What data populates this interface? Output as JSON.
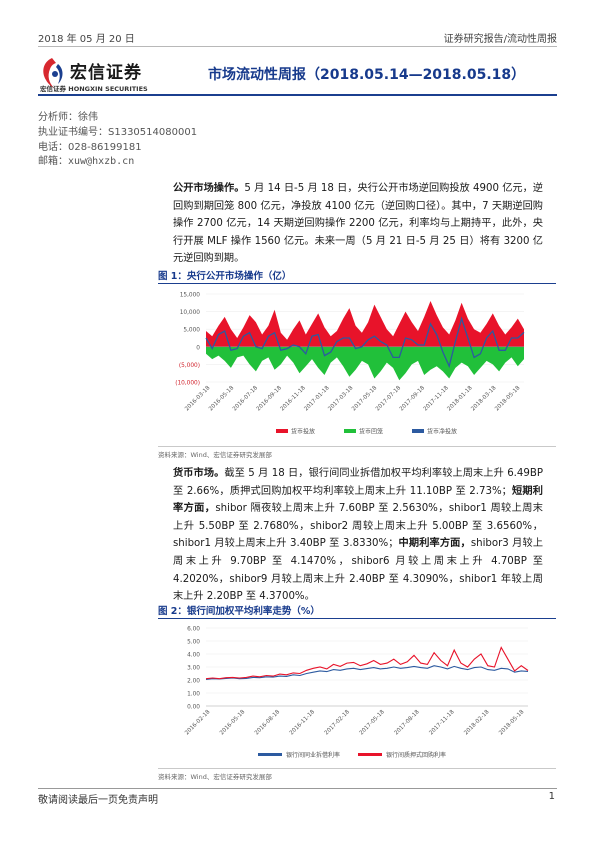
{
  "header": {
    "date": "2018 年 05 月 20 日",
    "category": "证券研究报告/流动性周报"
  },
  "brand": {
    "name_cn": "宏信证券",
    "name_en_small": "宏信证券",
    "name_en": "HONGXIN SECURITIES",
    "color": "#d7282f"
  },
  "report_title": "市场流动性周报（2018.05.14—2018.05.18）",
  "author": {
    "analyst": "分析师：徐伟",
    "license": "执业证书编号：S1330514080001",
    "phone": "电话：028-86199181",
    "email": "邮箱：xuw@hxzb.cn"
  },
  "para1": {
    "lead": "公开市场操作。",
    "text": "5 月 14 日-5 月 18 日，央行公开市场逆回购投放 4900 亿元，逆回购到期回笼 800 亿元，净投放 4100 亿元（逆回购口径）。其中，7 天期逆回购操作 2700 亿元，14 天期逆回购操作 2200 亿元，利率均与上期持平，此外，央行开展 MLF 操作 1560 亿元。未来一周（5 月 21 日-5 月 25 日）将有 3200 亿元逆回购到期。"
  },
  "fig1": {
    "title": "图 1：央行公开市场操作（亿）",
    "source": "资料来源：Wind、宏信证券研究发展部"
  },
  "para2": {
    "lead": "货币市场。",
    "text1": "截至 5 月 18 日，银行间同业拆借加权平均利率较上周末上升 6.49BP 至 2.66%，质押式回购加权平均利率较上周末上升 11.10BP 至 2.73%；",
    "lead2": "短期利率方面，",
    "text2": "shibor 隔夜较上周末上升 7.60BP 至 2.5630%，shibor1 周较上周末上升 5.50BP 至 2.7680%，shibor2 周较上周末上升 5.00BP 至 3.6560%，shibor1 月较上周末上升 3.40BP 至 3.8330%；",
    "lead3": "中期利率方面，",
    "text3": "shibor3 月较上周末上升 9.70BP 至 4.1470%，shibor6 月较上周末上升 4.70BP 至 4.2020%，shibor9 月较上周末上升 2.40BP 至 4.3090%，shibor1 年较上周末上升 2.20BP 至 4.3700%。"
  },
  "fig2": {
    "title": "图 2：银行间加权平均利率走势（%）",
    "source": "资料来源：Wind、宏信证券研究发展部"
  },
  "footer": {
    "disclaimer": "敬请阅读最后一页免责声明",
    "page": "1"
  },
  "chart_data": [
    {
      "type": "area",
      "title": "",
      "x_ticks": [
        "2016-03-18",
        "2016-05-18",
        "2016-07-18",
        "2016-09-18",
        "2016-11-18",
        "2017-01-18",
        "2017-03-18",
        "2017-05-18",
        "2017-07-18",
        "2017-09-18",
        "2017-11-18",
        "2018-01-18",
        "2018-03-18",
        "2018-05-18"
      ],
      "y_ticks": [
        "15,000",
        "10,000",
        "5,000",
        "0",
        "(5,000)",
        "(10,000)"
      ],
      "ylim": [
        -10000,
        15000
      ],
      "legend_position": "bottom",
      "colors": {
        "inject": "#e8132a",
        "withdraw": "#21c03a",
        "net": "#2c5aa0"
      },
      "series": [
        {
          "name": "货币投放",
          "values": [
            4500,
            3000,
            6000,
            8500,
            5000,
            2500,
            5500,
            9000,
            7000,
            3500,
            6000,
            10500,
            4000,
            2000,
            5000,
            7500,
            3500,
            6500,
            9500,
            5500,
            3000,
            4500,
            8000,
            11000,
            6000,
            4000,
            7000,
            12000,
            8500,
            5000,
            3000,
            6500,
            10000,
            7000,
            4500,
            8500,
            13000,
            9000,
            5500,
            3500,
            7500,
            12500,
            8000,
            5000,
            4000,
            6500,
            9500,
            6000,
            3500,
            5500,
            8000,
            5000
          ]
        },
        {
          "name": "货币回笼",
          "values": [
            -2000,
            -3500,
            -2500,
            -4000,
            -6000,
            -3000,
            -2500,
            -5000,
            -7000,
            -4000,
            -3000,
            -6500,
            -5000,
            -2500,
            -4500,
            -7500,
            -5500,
            -3500,
            -6000,
            -8000,
            -4500,
            -3000,
            -5500,
            -8500,
            -6500,
            -4000,
            -5000,
            -9000,
            -7000,
            -4500,
            -6000,
            -9500,
            -7500,
            -5000,
            -4000,
            -8000,
            -6500,
            -5500,
            -7000,
            -9000,
            -6000,
            -4500,
            -5500,
            -8000,
            -6000,
            -4000,
            -5000,
            -7000,
            -4500,
            -3000,
            -5500,
            -3500
          ]
        },
        {
          "name": "货币净投放",
          "values": [
            2500,
            -500,
            3500,
            4500,
            -1000,
            -500,
            3000,
            4000,
            0,
            -500,
            3000,
            4000,
            -1000,
            -500,
            500,
            0,
            -2000,
            3000,
            3500,
            -2500,
            -1500,
            1500,
            2500,
            2500,
            -500,
            0,
            2000,
            3000,
            1500,
            500,
            -3000,
            -3000,
            2500,
            2000,
            500,
            500,
            6500,
            3500,
            -1500,
            -5500,
            1500,
            8000,
            2500,
            -3000,
            -2000,
            2500,
            4500,
            -1000,
            -1000,
            2500,
            2500,
            4100
          ]
        }
      ]
    },
    {
      "type": "line",
      "title": "",
      "x_ticks": [
        "2016-02-18",
        "2016-05-18",
        "2016-08-18",
        "2016-11-18",
        "2017-02-18",
        "2017-05-18",
        "2017-08-18",
        "2017-11-18",
        "2018-02-18",
        "2018-05-18"
      ],
      "y_ticks": [
        "6.00",
        "5.00",
        "4.00",
        "3.00",
        "2.00",
        "1.00",
        "0.00"
      ],
      "ylim": [
        0,
        6
      ],
      "legend_position": "bottom",
      "colors": {
        "ibo": "#2c5aa0",
        "repo": "#e8132a"
      },
      "series": [
        {
          "name": "银行间同业拆借利率",
          "values": [
            2.05,
            2.1,
            2.08,
            2.12,
            2.15,
            2.1,
            2.12,
            2.2,
            2.18,
            2.25,
            2.22,
            2.3,
            2.28,
            2.4,
            2.35,
            2.5,
            2.6,
            2.7,
            2.65,
            2.8,
            2.75,
            2.85,
            2.9,
            2.8,
            2.88,
            2.95,
            2.85,
            2.9,
            3.0,
            2.9,
            2.95,
            3.05,
            2.95,
            2.9,
            3.1,
            3.0,
            2.85,
            3.05,
            2.9,
            2.8,
            2.95,
            3.0,
            2.8,
            2.75,
            2.9,
            2.85,
            2.6,
            2.7,
            2.66
          ]
        },
        {
          "name": "银行间质押式回购利率",
          "values": [
            2.1,
            2.15,
            2.1,
            2.18,
            2.2,
            2.15,
            2.2,
            2.3,
            2.25,
            2.35,
            2.3,
            2.45,
            2.4,
            2.55,
            2.5,
            2.75,
            2.9,
            3.0,
            2.85,
            3.2,
            3.05,
            3.3,
            3.35,
            3.1,
            3.25,
            3.5,
            3.2,
            3.3,
            3.6,
            3.2,
            3.4,
            3.9,
            3.3,
            3.2,
            4.1,
            3.5,
            3.1,
            4.3,
            3.3,
            3.0,
            3.6,
            4.0,
            3.1,
            3.0,
            4.5,
            3.6,
            2.7,
            3.1,
            2.73
          ]
        }
      ]
    }
  ]
}
